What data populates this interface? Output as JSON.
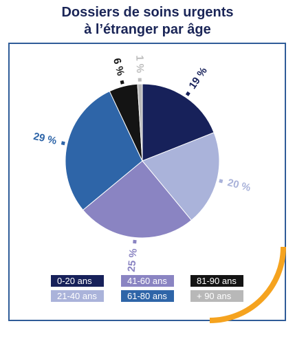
{
  "title_lines": [
    "Dossiers de soins urgents",
    "à l’étranger par âge"
  ],
  "colors": {
    "frame": "#2f5c98",
    "accent_arc": "#f5a31f",
    "title": "#1a2557"
  },
  "chart_data": {
    "type": "pie",
    "title": "Dossiers de soins urgents à l’étranger par âge",
    "legend_position": "bottom",
    "slices": [
      {
        "category": "0-20 ans",
        "value": 19,
        "label": "19 %",
        "color": "#17215a",
        "text_color": "#ffffff",
        "label_color": "#17215a"
      },
      {
        "category": "21-40 ans",
        "value": 20,
        "label": "20 %",
        "color": "#aab3da",
        "text_color": "#ffffff",
        "label_color": "#aab3da"
      },
      {
        "category": "41-60 ans",
        "value": 25,
        "label": "25 %",
        "color": "#8a84c2",
        "text_color": "#ffffff",
        "label_color": "#8a84c2"
      },
      {
        "category": "61-80 ans",
        "value": 29,
        "label": "29 %",
        "color": "#2e65a8",
        "text_color": "#ffffff",
        "label_color": "#2e65a8"
      },
      {
        "category": "81-90 ans",
        "value": 6,
        "label": "6 %",
        "color": "#141414",
        "text_color": "#ffffff",
        "label_color": "#141414"
      },
      {
        "category": "+ 90 ans",
        "value": 1,
        "label": "1 %",
        "color": "#b8b8b8",
        "text_color": "#ffffff",
        "label_color": "#bdbdbd"
      }
    ]
  }
}
